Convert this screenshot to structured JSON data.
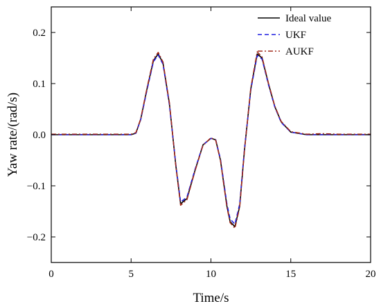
{
  "chart_data": {
    "type": "line",
    "title": "",
    "xlabel": "Time/s",
    "ylabel": "Yaw rate/(rad/s)",
    "xlim": [
      0,
      20
    ],
    "ylim": [
      -0.25,
      0.25
    ],
    "x_ticks": [
      0,
      5,
      10,
      15,
      20
    ],
    "x_tick_labels": [
      "0",
      "5",
      "10",
      "15",
      "20"
    ],
    "y_ticks": [
      -0.2,
      -0.1,
      0.0,
      0.1,
      0.2
    ],
    "y_tick_labels": [
      "−0.2",
      "−0.1",
      "0.0",
      "0.1",
      "0.2"
    ],
    "grid": false,
    "legend_position": "top-right",
    "x": [
      0,
      5,
      5.3,
      5.6,
      6.0,
      6.4,
      6.7,
      7.0,
      7.4,
      7.8,
      8.1,
      8.5,
      9.0,
      9.5,
      10.0,
      10.3,
      10.6,
      11.0,
      11.2,
      11.5,
      11.8,
      12.1,
      12.5,
      12.9,
      13.2,
      13.6,
      14.0,
      14.4,
      15.0,
      16.0,
      17.0,
      18.0,
      20.0
    ],
    "series": [
      {
        "name": "Ideal value",
        "color": "#000000",
        "dash": "solid",
        "values": [
          0,
          0,
          0.003,
          0.03,
          0.09,
          0.145,
          0.158,
          0.14,
          0.06,
          -0.06,
          -0.135,
          -0.125,
          -0.07,
          -0.02,
          -0.007,
          -0.01,
          -0.05,
          -0.14,
          -0.17,
          -0.18,
          -0.14,
          -0.03,
          0.09,
          0.158,
          0.15,
          0.1,
          0.055,
          0.025,
          0.005,
          0,
          0,
          0,
          0
        ]
      },
      {
        "name": "UKF",
        "color": "#1f1fe0",
        "dash": "dashed",
        "values": [
          0,
          0,
          0.003,
          0.029,
          0.088,
          0.143,
          0.156,
          0.138,
          0.058,
          -0.058,
          -0.132,
          -0.122,
          -0.068,
          -0.02,
          -0.007,
          -0.01,
          -0.048,
          -0.136,
          -0.165,
          -0.175,
          -0.136,
          -0.028,
          0.088,
          0.155,
          0.148,
          0.098,
          0.054,
          0.024,
          0.005,
          0,
          0,
          0,
          0
        ]
      },
      {
        "name": "AUKF",
        "color": "#a0291a",
        "dash": "dashdot",
        "values": [
          0.001,
          0.001,
          0.004,
          0.031,
          0.092,
          0.148,
          0.161,
          0.142,
          0.062,
          -0.061,
          -0.138,
          -0.127,
          -0.071,
          -0.021,
          -0.006,
          -0.011,
          -0.051,
          -0.142,
          -0.172,
          -0.183,
          -0.142,
          -0.031,
          0.092,
          0.162,
          0.152,
          0.101,
          0.056,
          0.026,
          0.006,
          0.001,
          0.002,
          0.001,
          0.001
        ]
      }
    ]
  }
}
